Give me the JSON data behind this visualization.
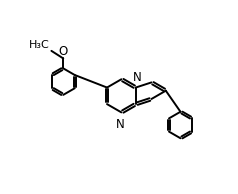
{
  "background_color": "#ffffff",
  "bond_color": "#000000",
  "atom_color": "#000000",
  "bond_width": 1.4,
  "font_size": 8.5,
  "fig_width": 2.38,
  "fig_height": 1.94,
  "dpi": 100,
  "xlim": [
    0,
    10
  ],
  "ylim": [
    0,
    8
  ]
}
